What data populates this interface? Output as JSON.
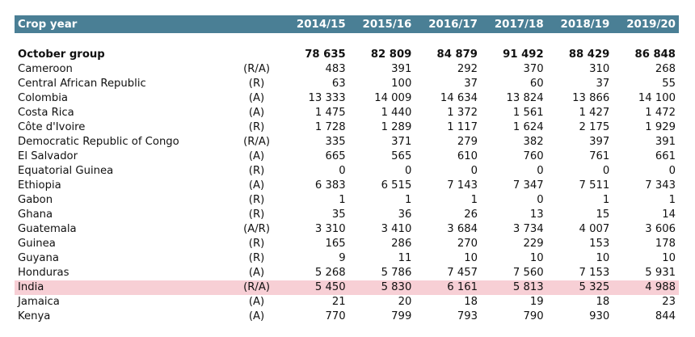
{
  "header": {
    "crop_year_label": "Crop year",
    "years": [
      "2014/15",
      "2015/16",
      "2016/17",
      "2017/18",
      "2018/19",
      "2019/20"
    ]
  },
  "group": {
    "name": "October group",
    "values": [
      "78 635",
      "82 809",
      "84 879",
      "91 492",
      "88 429",
      "86 848"
    ]
  },
  "rows": [
    {
      "country": "Cameroon",
      "type": "(R/A)",
      "values": [
        "483",
        "391",
        "292",
        "370",
        "310",
        "268"
      ]
    },
    {
      "country": "Central African Republic",
      "type": "(R)",
      "values": [
        "63",
        "100",
        "37",
        "60",
        "37",
        "55"
      ]
    },
    {
      "country": "Colombia",
      "type": "(A)",
      "values": [
        "13 333",
        "14 009",
        "14 634",
        "13 824",
        "13 866",
        "14 100"
      ]
    },
    {
      "country": "Costa Rica",
      "type": "(A)",
      "values": [
        "1 475",
        "1 440",
        "1 372",
        "1 561",
        "1 427",
        "1 472"
      ]
    },
    {
      "country": "Côte d'Ivoire",
      "type": "(R)",
      "values": [
        "1 728",
        "1 289",
        "1 117",
        "1 624",
        "2 175",
        "1 929"
      ]
    },
    {
      "country": "Democratic Republic of Congo",
      "type": "(R/A)",
      "values": [
        "335",
        "371",
        "279",
        "382",
        "397",
        "391"
      ]
    },
    {
      "country": "El Salvador",
      "type": "(A)",
      "values": [
        "665",
        "565",
        "610",
        "760",
        "761",
        "661"
      ]
    },
    {
      "country": "Equatorial Guinea",
      "type": "(R)",
      "values": [
        "0",
        "0",
        "0",
        "0",
        "0",
        "0"
      ]
    },
    {
      "country": "Ethiopia",
      "type": "(A)",
      "values": [
        "6 383",
        "6 515",
        "7 143",
        "7 347",
        "7 511",
        "7 343"
      ]
    },
    {
      "country": "Gabon",
      "type": "(R)",
      "values": [
        "1",
        "1",
        "1",
        "0",
        "1",
        "1"
      ]
    },
    {
      "country": "Ghana",
      "type": "(R)",
      "values": [
        "35",
        "36",
        "26",
        "13",
        "15",
        "14"
      ]
    },
    {
      "country": "Guatemala",
      "type": "(A/R)",
      "values": [
        "3 310",
        "3 410",
        "3 684",
        "3 734",
        "4 007",
        "3 606"
      ]
    },
    {
      "country": "Guinea",
      "type": "(R)",
      "values": [
        "165",
        "286",
        "270",
        "229",
        "153",
        "178"
      ]
    },
    {
      "country": "Guyana",
      "type": "(R)",
      "values": [
        "9",
        "11",
        "10",
        "10",
        "10",
        "10"
      ]
    },
    {
      "country": "Honduras",
      "type": "(A)",
      "values": [
        "5 268",
        "5 786",
        "7 457",
        "7 560",
        "7 153",
        "5 931"
      ]
    },
    {
      "country": "India",
      "type": "(R/A)",
      "values": [
        "5 450",
        "5 830",
        "6 161",
        "5 813",
        "5 325",
        "4 988"
      ],
      "highlight": true
    },
    {
      "country": "Jamaica",
      "type": "(A)",
      "values": [
        "21",
        "20",
        "18",
        "19",
        "18",
        "23"
      ]
    },
    {
      "country": "Kenya",
      "type": "(A)",
      "values": [
        "770",
        "799",
        "793",
        "790",
        "930",
        "844"
      ]
    }
  ],
  "colors": {
    "header_bg": "#4a7f95",
    "highlight_bg": "#f7cfd5"
  }
}
